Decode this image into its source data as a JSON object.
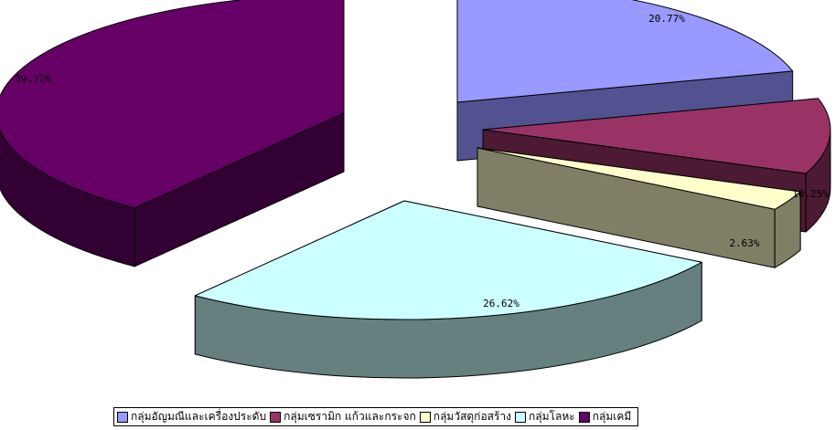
{
  "chart_data": {
    "type": "pie",
    "style": "3d-exploded",
    "categories": [
      "กลุ่มอัญมณีและเครื่องประดับ",
      "กลุ่มเซรามิก แก้วและกระจก",
      "กลุ่มวัสดุก่อสร้าง",
      "กลุ่มโลหะ",
      "กลุ่มเคมี"
    ],
    "values": [
      20.77,
      10.25,
      2.63,
      26.62,
      39.72
    ],
    "labels": [
      "20.77%",
      "10.25%",
      "2.63%",
      "26.62%",
      "39.72%"
    ],
    "colors": [
      "#9999ff",
      "#993366",
      "#ffffcc",
      "#ccffff",
      "#660066"
    ],
    "side_colors": [
      "#525290",
      "#4d1a33",
      "#7f7f66",
      "#668080",
      "#330033"
    ],
    "legend_position": "bottom"
  }
}
